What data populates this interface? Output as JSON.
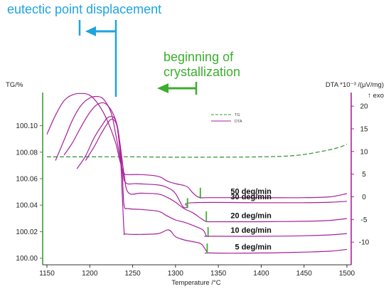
{
  "colors": {
    "dta": "#a8219a",
    "tg": "#3c9a3c",
    "axis_left": "#3c9a3c",
    "axis_right": "#a8219a",
    "annotation_blue": "#1ea4e0",
    "annotation_green": "#3cae2e"
  },
  "chart_data": {
    "type": "line",
    "xlabel": "Temperature /°C",
    "ylabel_left": "TG/%",
    "ylabel_right": "DTA *10⁻³ /(μV/mg)",
    "ylabel_right_note": "↑ exo",
    "xlim": [
      1145,
      1505
    ],
    "ylim_left": [
      99.995,
      100.125
    ],
    "ylim_right": [
      -15,
      23
    ],
    "x_ticks": [
      1150,
      1200,
      1250,
      1300,
      1350,
      1400,
      1450,
      1500
    ],
    "left_ticks": [
      "100.00",
      "100.02",
      "100.04",
      "100.06",
      "100.08",
      "100.10"
    ],
    "left_tick_values": [
      100.0,
      100.02,
      100.04,
      100.06,
      100.08,
      100.1
    ],
    "right_ticks": [
      "20",
      "15",
      "10",
      "5",
      "0",
      "-5",
      "-10"
    ],
    "right_tick_values": [
      20,
      15,
      10,
      5,
      0,
      -5,
      -10
    ],
    "legend": [
      "TG",
      "DTA"
    ],
    "tg_series": {
      "name": "TG",
      "x": [
        1150,
        1200,
        1250,
        1300,
        1350,
        1400,
        1440,
        1470,
        1490,
        1500
      ],
      "y": [
        100.0765,
        100.0765,
        100.0765,
        100.0762,
        100.0763,
        100.0765,
        100.0775,
        100.0805,
        100.0835,
        100.086
      ]
    },
    "dta_series": [
      {
        "name": "50 deg/min",
        "x": [
          1150,
          1160,
          1170,
          1180,
          1189,
          1200,
          1210,
          1220,
          1230,
          1235,
          1240,
          1245,
          1260,
          1280,
          1290,
          1300,
          1310,
          1315,
          1320,
          1325,
          1330,
          1340,
          1400,
          1450,
          1480,
          1500
        ],
        "y": [
          13.8,
          18,
          21.2,
          22.5,
          22.8,
          22.4,
          20.4,
          17,
          12,
          8,
          5.2,
          4.9,
          4.9,
          4.5,
          3.5,
          2.9,
          2.5,
          2.0,
          0.9,
          0.1,
          -0.2,
          -0.2,
          -0.2,
          -0.2,
          0,
          0.7
        ]
      },
      {
        "name": "30 deg/min",
        "x": [
          1160,
          1170,
          1180,
          1190,
          1200,
          1210,
          1217,
          1225,
          1230,
          1238,
          1242,
          1255,
          1280,
          1292,
          1300,
          1308,
          1312,
          1314,
          1320,
          1400,
          1450,
          1480,
          1500
        ],
        "y": [
          8,
          12.5,
          17,
          20.2,
          21.8,
          22.1,
          21.3,
          18.5,
          14,
          6,
          3.1,
          2.9,
          2.6,
          1.9,
          0.7,
          -2.0,
          -2.4,
          -2.1,
          -1.3,
          -1.3,
          -1.3,
          -1.2,
          -1
        ]
      },
      {
        "name": "20 deg/min",
        "x": [
          1170,
          1180,
          1190,
          1200,
          1210,
          1220,
          1230,
          1235,
          1240,
          1245,
          1260,
          1280,
          1290,
          1300,
          1310,
          1320,
          1330,
          1335,
          1340,
          1360,
          1400,
          1450,
          1480,
          1500
        ],
        "y": [
          9.2,
          12,
          15.5,
          18.6,
          20.5,
          20.3,
          17,
          12,
          5,
          0.9,
          0.8,
          0.6,
          -0.1,
          -1.2,
          -2.6,
          -3.5,
          -4.8,
          -5.4,
          -5.5,
          -5.5,
          -5.5,
          -5.4,
          -5.2,
          -4.8
        ]
      },
      {
        "name": "10 deg/min",
        "x": [
          1185,
          1195,
          1205,
          1215,
          1222,
          1230,
          1235,
          1238,
          1240,
          1245,
          1260,
          1280,
          1290,
          1300,
          1310,
          1320,
          1332,
          1336,
          1340,
          1400,
          1450,
          1480,
          1500
        ],
        "y": [
          6.2,
          9,
          13,
          16,
          17.6,
          16.9,
          12,
          5,
          -1.8,
          -2.6,
          -2.8,
          -3.2,
          -4.2,
          -5.1,
          -5.6,
          -6.3,
          -7.3,
          -8.6,
          -8.7,
          -8.7,
          -8.6,
          -8.4,
          -8.1
        ]
      },
      {
        "name": "5 deg/min",
        "x": [
          1195,
          1205,
          1212,
          1220,
          1225,
          1230,
          1233,
          1236,
          1238,
          1240,
          1242,
          1260,
          1280,
          1292,
          1300,
          1310,
          1320,
          1330,
          1337,
          1340,
          1400,
          1450,
          1480,
          1500
        ],
        "y": [
          8,
          11,
          13.5,
          16,
          17.1,
          16.5,
          14,
          8,
          0,
          -7.5,
          -8.2,
          -8.3,
          -8.1,
          -7.3,
          -8.8,
          -9.5,
          -9.9,
          -10.4,
          -12.2,
          -12.4,
          -12.4,
          -12.2,
          -12,
          -11.6
        ]
      }
    ],
    "markers": [
      {
        "x": 1329,
        "y0": -0.4,
        "y1": 2.0
      },
      {
        "x": 1314,
        "y0": -2.5,
        "y1": -0.3
      },
      {
        "x": 1336,
        "y0": -5.5,
        "y1": -3.2
      },
      {
        "x": 1338,
        "y0": -8.9,
        "y1": -6.7
      },
      {
        "x": 1337,
        "y0": -12.5,
        "y1": -10.3
      }
    ],
    "annotations": [
      {
        "text": "eutectic point displacement",
        "color": "blue"
      },
      {
        "text": "beginning of",
        "color": "green"
      },
      {
        "text": "crystallization",
        "color": "green"
      }
    ]
  }
}
